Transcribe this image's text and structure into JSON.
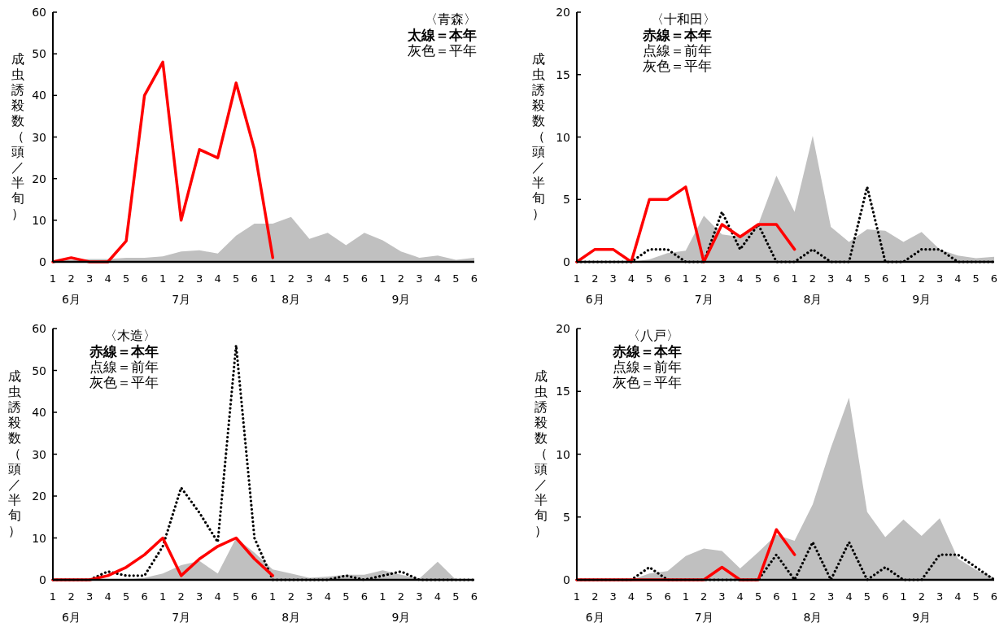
{
  "chart_data": [
    {
      "type": "line",
      "title": "〈青森〉",
      "ylabel": "成虫誘殺数（頭／半旬）",
      "categories": [
        "1",
        "2",
        "3",
        "4",
        "5",
        "6",
        "1",
        "2",
        "3",
        "4",
        "5",
        "6",
        "1",
        "2",
        "3",
        "4",
        "5",
        "6",
        "1",
        "2",
        "3",
        "4",
        "5",
        "6"
      ],
      "annotations": [
        "太線＝本年",
        "灰色＝平年",
        "6月",
        "7月",
        "8月",
        "9月"
      ],
      "ylim": [
        0,
        60
      ],
      "yticks": [
        0,
        10,
        20,
        30,
        40,
        50,
        60
      ],
      "series": [
        {
          "type": "area",
          "color": "#c0c0c0",
          "values": [
            0,
            0.5,
            0.7,
            0.7,
            1,
            1,
            1.3,
            2.5,
            2.8,
            2,
            6.3,
            9.2,
            9.2,
            10.8,
            5.5,
            7,
            4,
            7,
            5.2,
            2.5,
            1,
            1.5,
            0.5,
            1
          ]
        },
        {
          "color": "#ff0000",
          "line_style": "solid",
          "values": [
            0,
            1,
            0,
            0,
            5,
            40,
            48,
            10,
            27,
            25,
            43,
            27,
            1,
            null,
            null,
            null,
            null,
            null,
            null,
            null,
            null,
            null,
            null,
            null
          ]
        }
      ]
    },
    {
      "type": "line",
      "title": "〈十和田〉",
      "ylabel": "成虫誘殺数（頭／半旬）",
      "categories": [
        "1",
        "2",
        "3",
        "4",
        "5",
        "6",
        "1",
        "2",
        "3",
        "4",
        "5",
        "6",
        "1",
        "2",
        "3",
        "4",
        "5",
        "6",
        "1",
        "2",
        "3",
        "4",
        "5",
        "6"
      ],
      "annotations": [
        "赤線＝本年",
        "点線＝前年",
        "灰色＝平年",
        "6月",
        "7月",
        "8月",
        "9月"
      ],
      "ylim": [
        0,
        20
      ],
      "yticks": [
        0,
        5,
        10,
        15,
        20
      ],
      "series": [
        {
          "type": "area",
          "color": "#c0c0c0",
          "values": [
            0,
            0,
            0,
            0,
            0.2,
            0.7,
            0.9,
            3.7,
            2.2,
            2,
            3,
            6.9,
            4,
            10.1,
            2.8,
            1.6,
            2.6,
            2.5,
            1.6,
            2.4,
            1,
            0.5,
            0.3,
            0.4
          ]
        },
        {
          "color": "#000000",
          "line_style": "dotted",
          "values": [
            0,
            0,
            0,
            0,
            1,
            1,
            0,
            0,
            4,
            1,
            3,
            0,
            0,
            1,
            0,
            0,
            6,
            0,
            0,
            1,
            1,
            0,
            0,
            0
          ]
        },
        {
          "color": "#ff0000",
          "line_style": "solid",
          "values": [
            0,
            1,
            1,
            0,
            5,
            5,
            6,
            0,
            3,
            2,
            3,
            3,
            1,
            null,
            null,
            null,
            null,
            null,
            null,
            null,
            null,
            null,
            null,
            null
          ]
        }
      ]
    },
    {
      "type": "line",
      "title": "〈木造〉",
      "ylabel": "成虫誘殺数（頭／半旬）",
      "categories": [
        "1",
        "2",
        "3",
        "4",
        "5",
        "6",
        "1",
        "2",
        "3",
        "4",
        "5",
        "6",
        "1",
        "2",
        "3",
        "4",
        "5",
        "6",
        "1",
        "2",
        "3",
        "4",
        "5",
        "6"
      ],
      "annotations": [
        "赤線＝本年",
        "点線＝前年",
        "灰色＝平年",
        "6月",
        "7月",
        "8月",
        "9月"
      ],
      "ylim": [
        0,
        60
      ],
      "yticks": [
        0,
        10,
        20,
        30,
        40,
        50,
        60
      ],
      "series": [
        {
          "type": "area",
          "color": "#c0c0c0",
          "values": [
            0,
            0,
            0,
            0,
            0,
            0.5,
            1.5,
            3.5,
            4.5,
            1.5,
            10,
            6.5,
            2.5,
            1.5,
            0.5,
            0.8,
            1.2,
            1.2,
            2.3,
            1.2,
            0.3,
            4.3,
            0,
            0
          ]
        },
        {
          "color": "#000000",
          "line_style": "dotted",
          "values": [
            0,
            0,
            0,
            2,
            1,
            1,
            8,
            22,
            16,
            9,
            56,
            10,
            0,
            0,
            0,
            0,
            1,
            0,
            1,
            2,
            0,
            0,
            0,
            0
          ]
        },
        {
          "color": "#ff0000",
          "line_style": "solid",
          "values": [
            0,
            0,
            0,
            1,
            3,
            6,
            10,
            1,
            5,
            8,
            10,
            5,
            1,
            null,
            null,
            null,
            null,
            null,
            null,
            null,
            null,
            null,
            null,
            null
          ]
        }
      ]
    },
    {
      "type": "line",
      "title": "〈八戸〉",
      "ylabel": "成虫誘殺数（頭／半旬）",
      "categories": [
        "1",
        "2",
        "3",
        "4",
        "5",
        "6",
        "1",
        "2",
        "3",
        "4",
        "5",
        "6",
        "1",
        "2",
        "3",
        "4",
        "5",
        "6",
        "1",
        "2",
        "3",
        "4",
        "5",
        "6"
      ],
      "annotations": [
        "赤線＝本年",
        "点線＝前年",
        "灰色＝平年",
        "6月",
        "7月",
        "8月",
        "9月"
      ],
      "ylim": [
        0,
        20
      ],
      "yticks": [
        0,
        5,
        10,
        15,
        20
      ],
      "series": [
        {
          "type": "area",
          "color": "#c0c0c0",
          "values": [
            0,
            0,
            0,
            0,
            0.5,
            0.7,
            1.9,
            2.5,
            2.3,
            0.9,
            2.2,
            3.6,
            3.1,
            6,
            10.5,
            14.5,
            5.4,
            3.4,
            4.8,
            3.5,
            4.9,
            1.7,
            0.8,
            0.2
          ]
        },
        {
          "color": "#000000",
          "line_style": "dotted",
          "values": [
            0,
            0,
            0,
            0,
            1,
            0,
            0,
            0,
            0,
            0,
            0,
            2,
            0,
            3,
            0,
            3,
            0,
            1,
            0,
            0,
            2,
            2,
            1,
            0
          ]
        },
        {
          "color": "#ff0000",
          "line_style": "solid",
          "values": [
            0,
            0,
            0,
            0,
            0,
            0,
            0,
            0,
            1,
            0,
            0,
            4,
            2,
            null,
            null,
            null,
            null,
            null,
            null,
            null,
            null,
            null,
            null,
            null
          ]
        }
      ]
    }
  ]
}
